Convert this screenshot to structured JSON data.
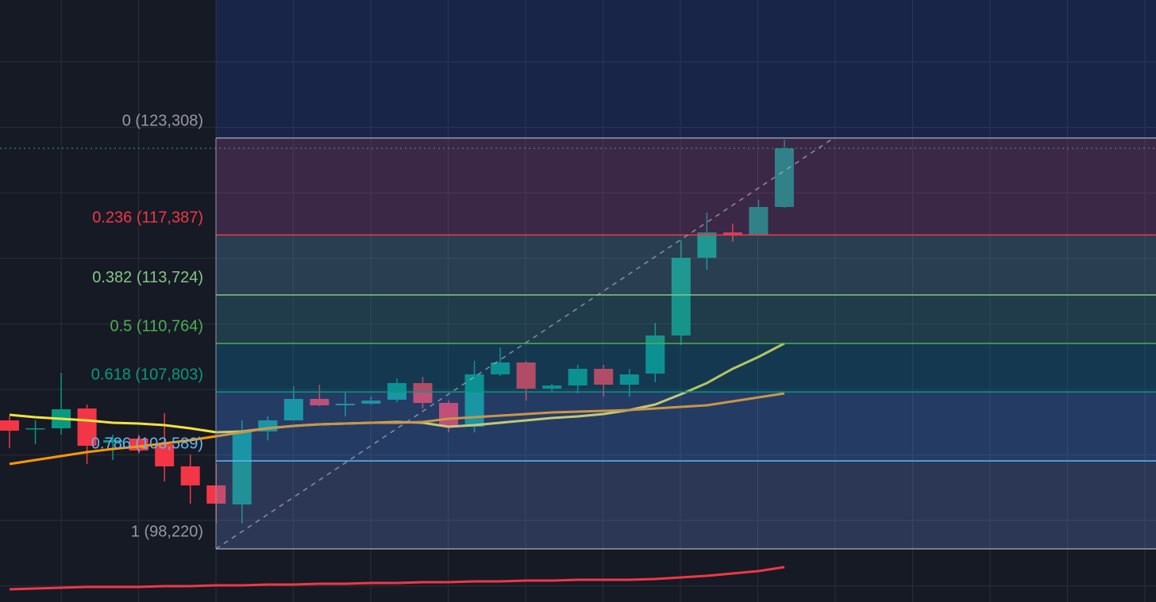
{
  "chart_data": {
    "type": "candlestick",
    "ylim": [
      94976,
      131735
    ],
    "candles": {
      "up_color": "#089981",
      "down_color": "#f23645",
      "open": [
        106067,
        105534,
        105583,
        106793,
        104711,
        104953,
        104614,
        103258,
        102096,
        100933,
        105389,
        106067,
        107375,
        106987,
        107084,
        107326,
        108343,
        107132,
        105679,
        108876,
        109602,
        108004,
        108198,
        109215,
        108246,
        108924,
        111249,
        115995,
        117545,
        117400,
        119095
      ],
      "high": [
        106309,
        106067,
        108973,
        107036,
        105195,
        105195,
        106503,
        103984,
        103403,
        106067,
        106309,
        108149,
        108246,
        107762,
        107520,
        108634,
        108731,
        107278,
        109699,
        110522,
        109699,
        108295,
        109457,
        109457,
        109215,
        112024,
        117061,
        118756,
        118078,
        119530,
        123211
      ],
      "low": [
        104372,
        104614,
        105195,
        103403,
        103645,
        104033,
        102338,
        100982,
        99771,
        99771,
        104856,
        106067,
        106939,
        106309,
        107036,
        107181,
        106793,
        105340,
        105340,
        108779,
        107278,
        107810,
        107714,
        107520,
        107520,
        108392,
        110668,
        115269,
        116964,
        117351,
        119046
      ],
      "close": [
        105437,
        105583,
        106745,
        104517,
        104856,
        104227,
        103258,
        102096,
        100982,
        105437,
        106067,
        107375,
        106987,
        107084,
        107278,
        108343,
        107132,
        105728,
        108876,
        109602,
        108004,
        108198,
        109215,
        108246,
        108876,
        111249,
        115995,
        117545,
        117400,
        119095,
        122678
      ]
    },
    "moving_averages": [
      {
        "color": "#f7e13d",
        "values": [
          106406,
          106261,
          106164,
          106067,
          105922,
          105873,
          105776,
          105583,
          105340,
          105389,
          105583,
          105728,
          105825,
          105873,
          105922,
          105970,
          105922,
          105679,
          105776,
          105922,
          106067,
          106212,
          106309,
          106454,
          106697,
          107036,
          107665,
          108343,
          109215,
          109941,
          110765
        ]
      },
      {
        "color": "#ff9800",
        "values": [
          103403,
          103645,
          103888,
          104130,
          104323,
          104469,
          104662,
          104856,
          105098,
          105340,
          105583,
          105728,
          105825,
          105873,
          105922,
          105922,
          105970,
          106164,
          106261,
          106357,
          106454,
          106551,
          106600,
          106648,
          106697,
          106793,
          106890,
          106987,
          107229,
          107472,
          107714
        ]
      },
      {
        "color": "#f23645",
        "values": [
          95751,
          95800,
          95848,
          95897,
          95897,
          95897,
          95945,
          95945,
          95993,
          95993,
          96042,
          96042,
          96090,
          96090,
          96139,
          96139,
          96187,
          96187,
          96236,
          96236,
          96284,
          96284,
          96332,
          96332,
          96332,
          96381,
          96478,
          96575,
          96720,
          96865,
          97107
        ]
      }
    ],
    "fib_levels": [
      {
        "value": 123308,
        "label": "0 (123,308)",
        "color": "#9598a1"
      },
      {
        "value": 117387,
        "label": "0.236 (117,387)",
        "color": "#f23645"
      },
      {
        "value": 113724,
        "label": "0.382 (113,724)",
        "color": "#81c784"
      },
      {
        "value": 110764,
        "label": "0.5 (110,764)",
        "color": "#4caf50"
      },
      {
        "value": 107803,
        "label": "0.618 (107,803)",
        "color": "#089981"
      },
      {
        "value": 103589,
        "label": "0.786 (103,589)",
        "color": "#64b5f6"
      },
      {
        "value": 98220,
        "label": "1 (98,220)",
        "color": "#9598a1"
      }
    ],
    "last_price_color": "#22ab94"
  }
}
